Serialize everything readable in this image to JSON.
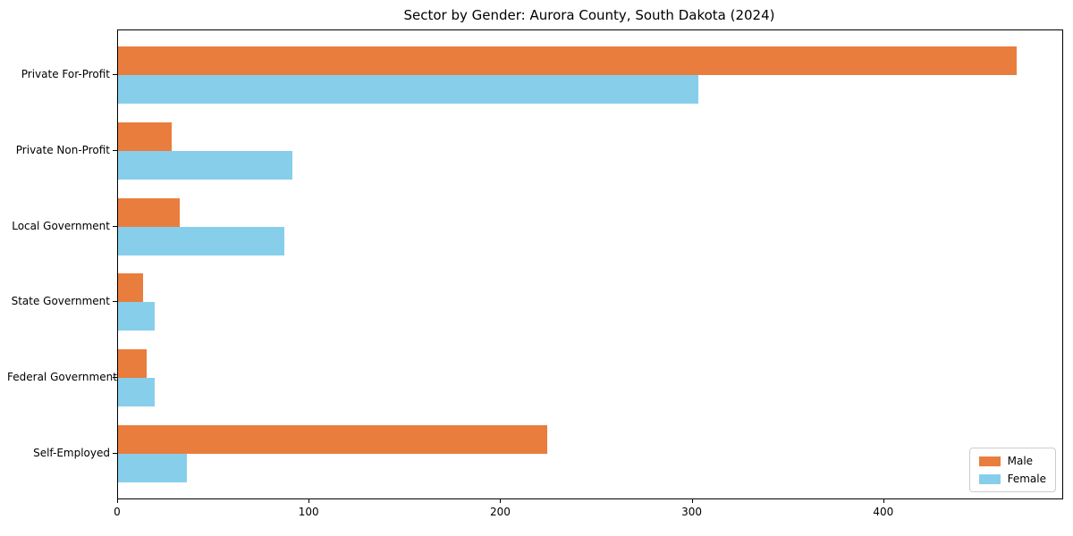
{
  "chart_data": {
    "type": "bar",
    "orientation": "horizontal",
    "title": "Sector by Gender: Aurora County, South Dakota (2024)",
    "categories": [
      "Private For-Profit",
      "Private Non-Profit",
      "Local Government",
      "State Government",
      "Federal Government",
      "Self-Employed"
    ],
    "series": [
      {
        "name": "Male",
        "color": "#e97d3d",
        "values": [
          469,
          28,
          32,
          13,
          15,
          224
        ]
      },
      {
        "name": "Female",
        "color": "#87ceeb",
        "values": [
          303,
          91,
          87,
          19,
          19,
          36
        ]
      }
    ],
    "xlabel": "",
    "ylabel": "",
    "xlim": [
      0,
      493
    ],
    "x_ticks": [
      0,
      100,
      200,
      300,
      400
    ],
    "grid": false,
    "legend": {
      "position": "lower right",
      "entries": [
        "Male",
        "Female"
      ]
    }
  }
}
